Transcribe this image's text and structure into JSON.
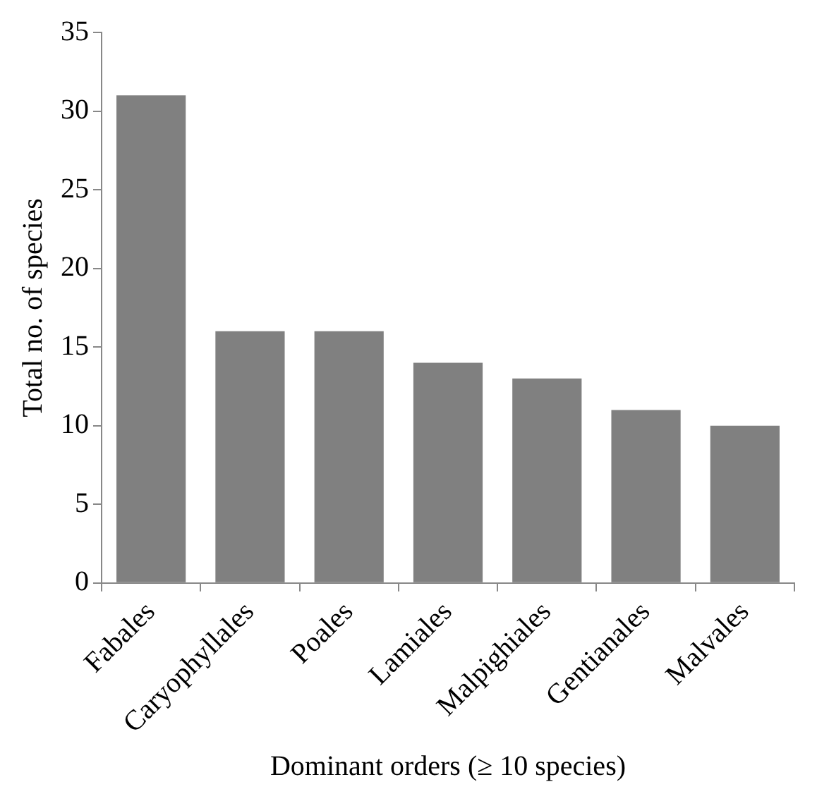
{
  "chart_data": {
    "type": "bar",
    "xlabel": "Dominant orders (≥ 10 species)",
    "ylabel": "Total no. of species",
    "categories": [
      "Fabales",
      "Caryophyllales",
      "Poales",
      "Lamiales",
      "Malpighiales",
      "Gentianales",
      "Malvales"
    ],
    "values": [
      31,
      16,
      16,
      14,
      13,
      11,
      10
    ],
    "color": "#808080",
    "ylim": [
      0,
      35
    ],
    "yticks": [
      0,
      5,
      10,
      15,
      20,
      25,
      30,
      35
    ],
    "grid": false,
    "legend": false
  }
}
